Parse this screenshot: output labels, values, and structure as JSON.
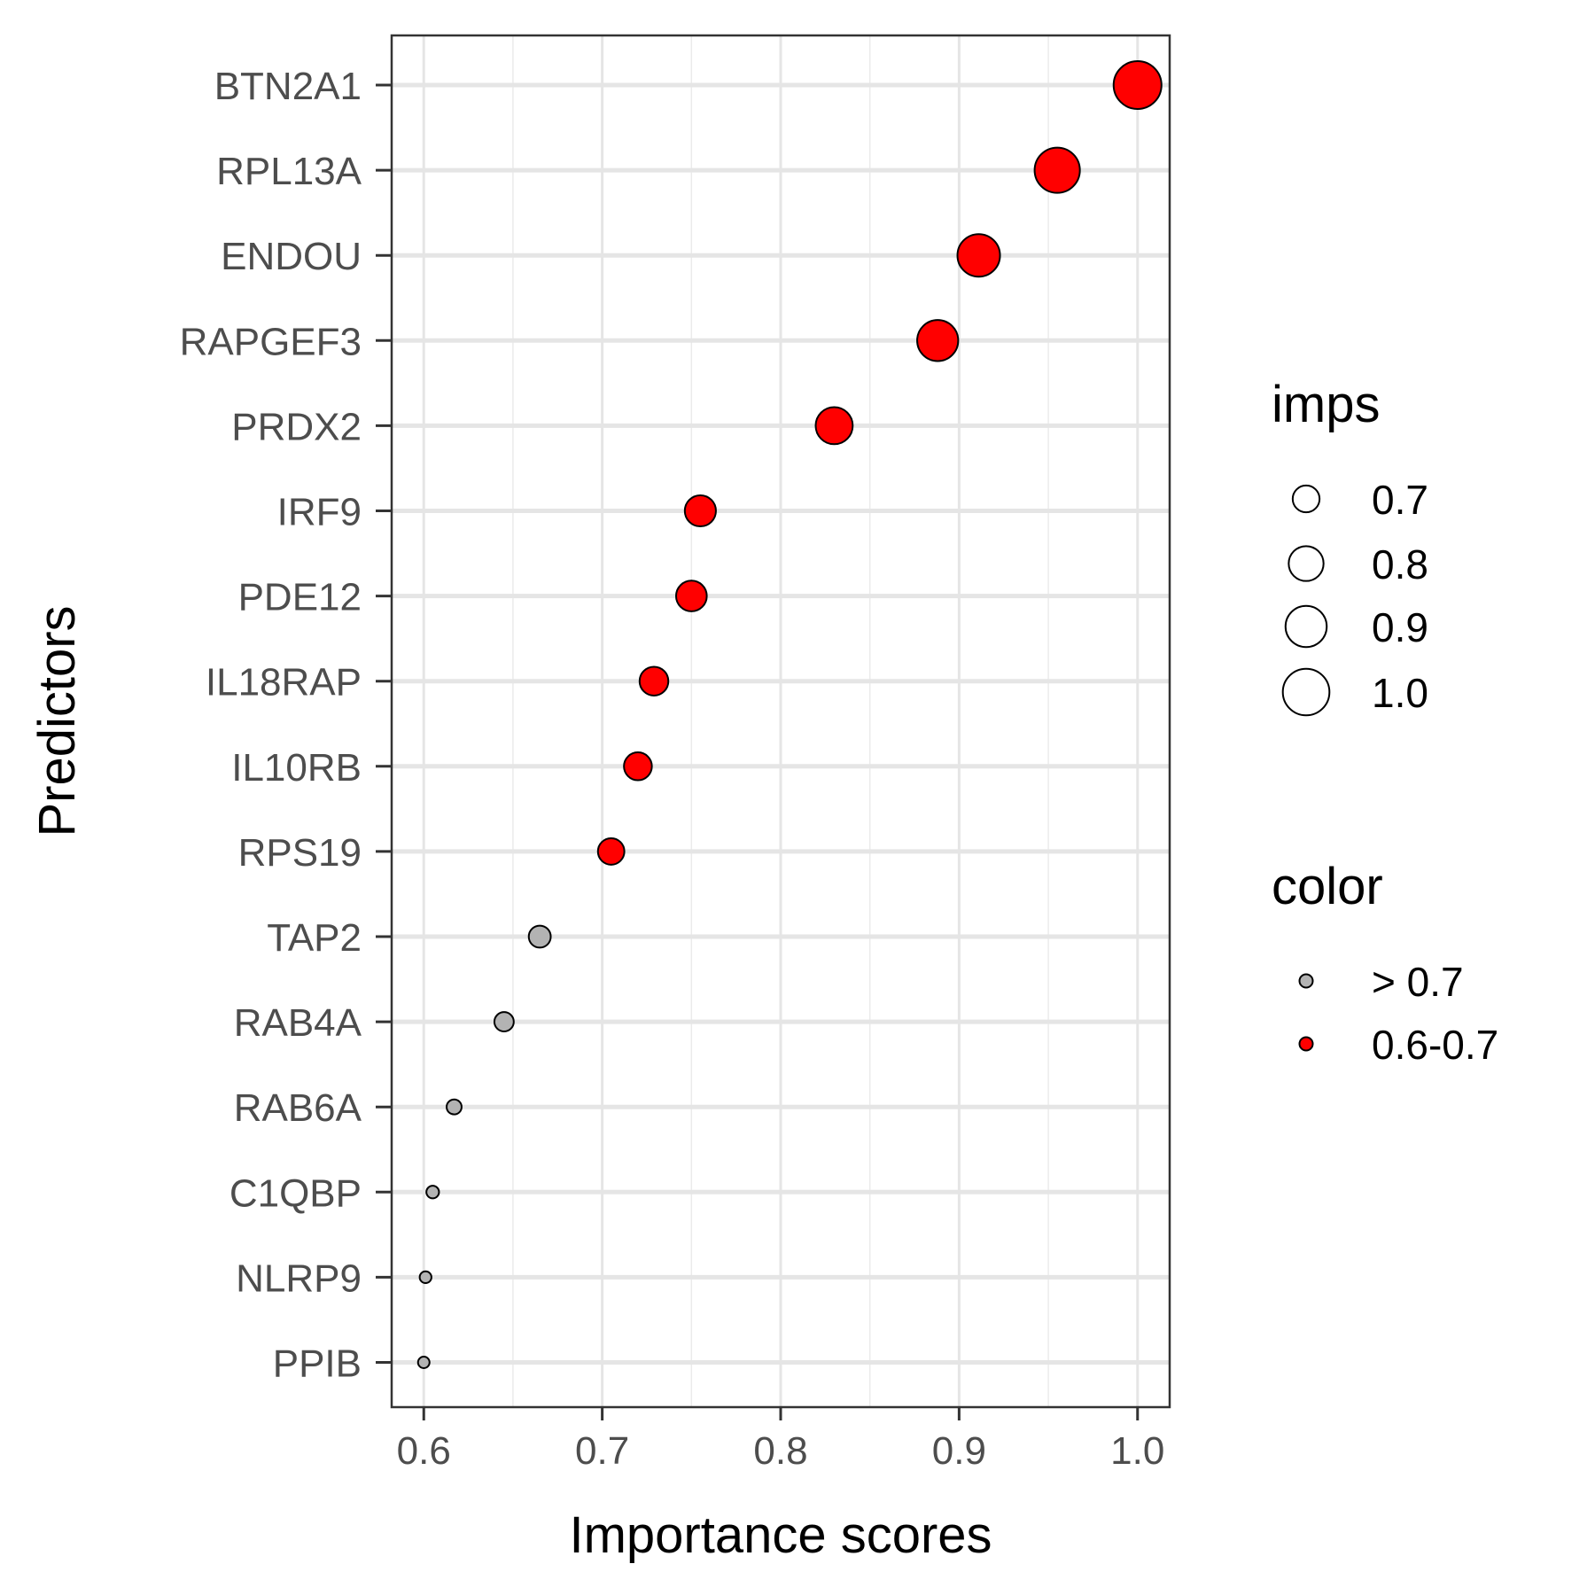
{
  "chart_data": {
    "type": "scatter",
    "xlabel": "Importance scores",
    "ylabel": "Predictors",
    "xlim": [
      0.582,
      1.018
    ],
    "x_ticks": [
      "0.6",
      "0.7",
      "0.8",
      "0.9",
      "1.0"
    ],
    "x_tick_values": [
      0.6,
      0.7,
      0.8,
      0.9,
      1.0
    ],
    "grid": true,
    "legend_placement": "right",
    "categories": [
      "BTN2A1",
      "RPL13A",
      "ENDOU",
      "RAPGEF3",
      "PRDX2",
      "IRF9",
      "PDE12",
      "IL18RAP",
      "IL10RB",
      "RPS19",
      "TAP2",
      "RAB4A",
      "RAB6A",
      "C1QBP",
      "NLRP9",
      "PPIB"
    ],
    "values": [
      1.0,
      0.955,
      0.911,
      0.888,
      0.83,
      0.755,
      0.75,
      0.729,
      0.72,
      0.705,
      0.665,
      0.645,
      0.617,
      0.605,
      0.601,
      0.6
    ],
    "groups": [
      "0.6-0.7",
      "0.6-0.7",
      "0.6-0.7",
      "0.6-0.7",
      "0.6-0.7",
      "0.6-0.7",
      "0.6-0.7",
      "0.6-0.7",
      "0.6-0.7",
      "0.6-0.7",
      "> 0.7",
      "> 0.7",
      "> 0.7",
      "> 0.7",
      "> 0.7",
      "> 0.7"
    ],
    "colors": {
      "> 0.7": "#b3b3b3",
      "0.6-0.7": "#ff0000"
    },
    "size_legend": {
      "title": "imps",
      "labels": [
        "0.7",
        "0.8",
        "0.9",
        "1.0"
      ],
      "values": [
        0.7,
        0.8,
        0.9,
        1.0
      ]
    },
    "color_legend": {
      "title": "color",
      "labels": [
        "> 0.7",
        "0.6-0.7"
      ]
    }
  }
}
